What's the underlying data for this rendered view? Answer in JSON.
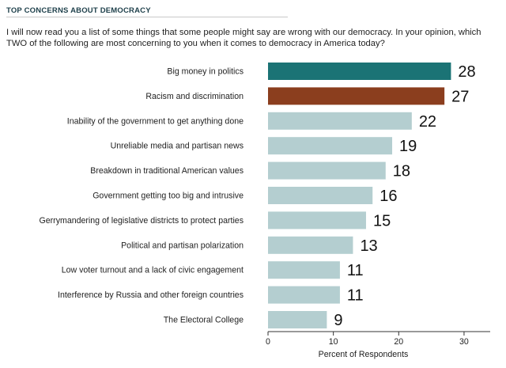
{
  "header": {
    "title": "TOP CONCERNS ABOUT DEMOCRACY",
    "question": "I will now read you a list of some things that some people might say are wrong with our democracy. In your opinion, which TWO of the following are most concerning to you when it comes to democracy in America today?"
  },
  "colors": {
    "highlight_first": "#1b7375",
    "highlight_second": "#8b3e1e",
    "default_bar": "#b4ced0",
    "axis": "#333333"
  },
  "chart_data": {
    "type": "bar",
    "orientation": "horizontal",
    "categories": [
      "Big money in politics",
      "Racism and discrimination",
      "Inability of the government to get anything done",
      "Unreliable media and partisan news",
      "Breakdown in traditional American values",
      "Government getting too big and intrusive",
      "Gerrymandering of legislative districts to protect parties",
      "Political and partisan polarization",
      "Low voter turnout and a lack of civic engagement",
      "Interference by Russia and other foreign countries",
      "The Electoral College"
    ],
    "values": [
      28,
      27,
      22,
      19,
      18,
      16,
      15,
      13,
      11,
      11,
      9
    ],
    "data_labels": [
      "28",
      "27",
      "22",
      "19",
      "18",
      "16",
      "15",
      "13",
      "11",
      "11",
      "9"
    ],
    "xlabel": "Percent of Respondents",
    "xlim": [
      0,
      34
    ],
    "xticks": [
      0,
      10,
      20,
      30
    ],
    "xtick_labels": [
      "0",
      "10",
      "20",
      "30"
    ],
    "grid": false,
    "legend": "none"
  }
}
